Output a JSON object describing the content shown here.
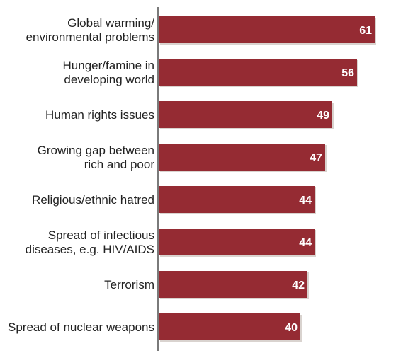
{
  "colors": {
    "bar": "#952b33",
    "bar_shadow": "#d9d3cf",
    "axis": "#222222",
    "label": "#222222",
    "value_text": "#ffffff"
  },
  "chart_data": {
    "type": "bar",
    "orientation": "horizontal",
    "categories": [
      [
        "Global warming/",
        "environmental problems"
      ],
      [
        "Hunger/famine in",
        "developing world"
      ],
      [
        "Human rights issues"
      ],
      [
        "Growing gap between",
        "rich and poor"
      ],
      [
        "Religious/ethnic hatred"
      ],
      [
        "Spread of infectious",
        "diseases, e.g. HIV/AIDS"
      ],
      [
        "Terrorism"
      ],
      [
        "Spread of nuclear weapons"
      ]
    ],
    "values": [
      61,
      56,
      49,
      47,
      44,
      44,
      42,
      40
    ],
    "data_labels": [
      "61",
      "56",
      "49",
      "47",
      "44",
      "44",
      "42",
      "40"
    ],
    "xlim": [
      0,
      61
    ],
    "title": "",
    "xlabel": "",
    "ylabel": "",
    "grid": false,
    "legend": "none"
  }
}
